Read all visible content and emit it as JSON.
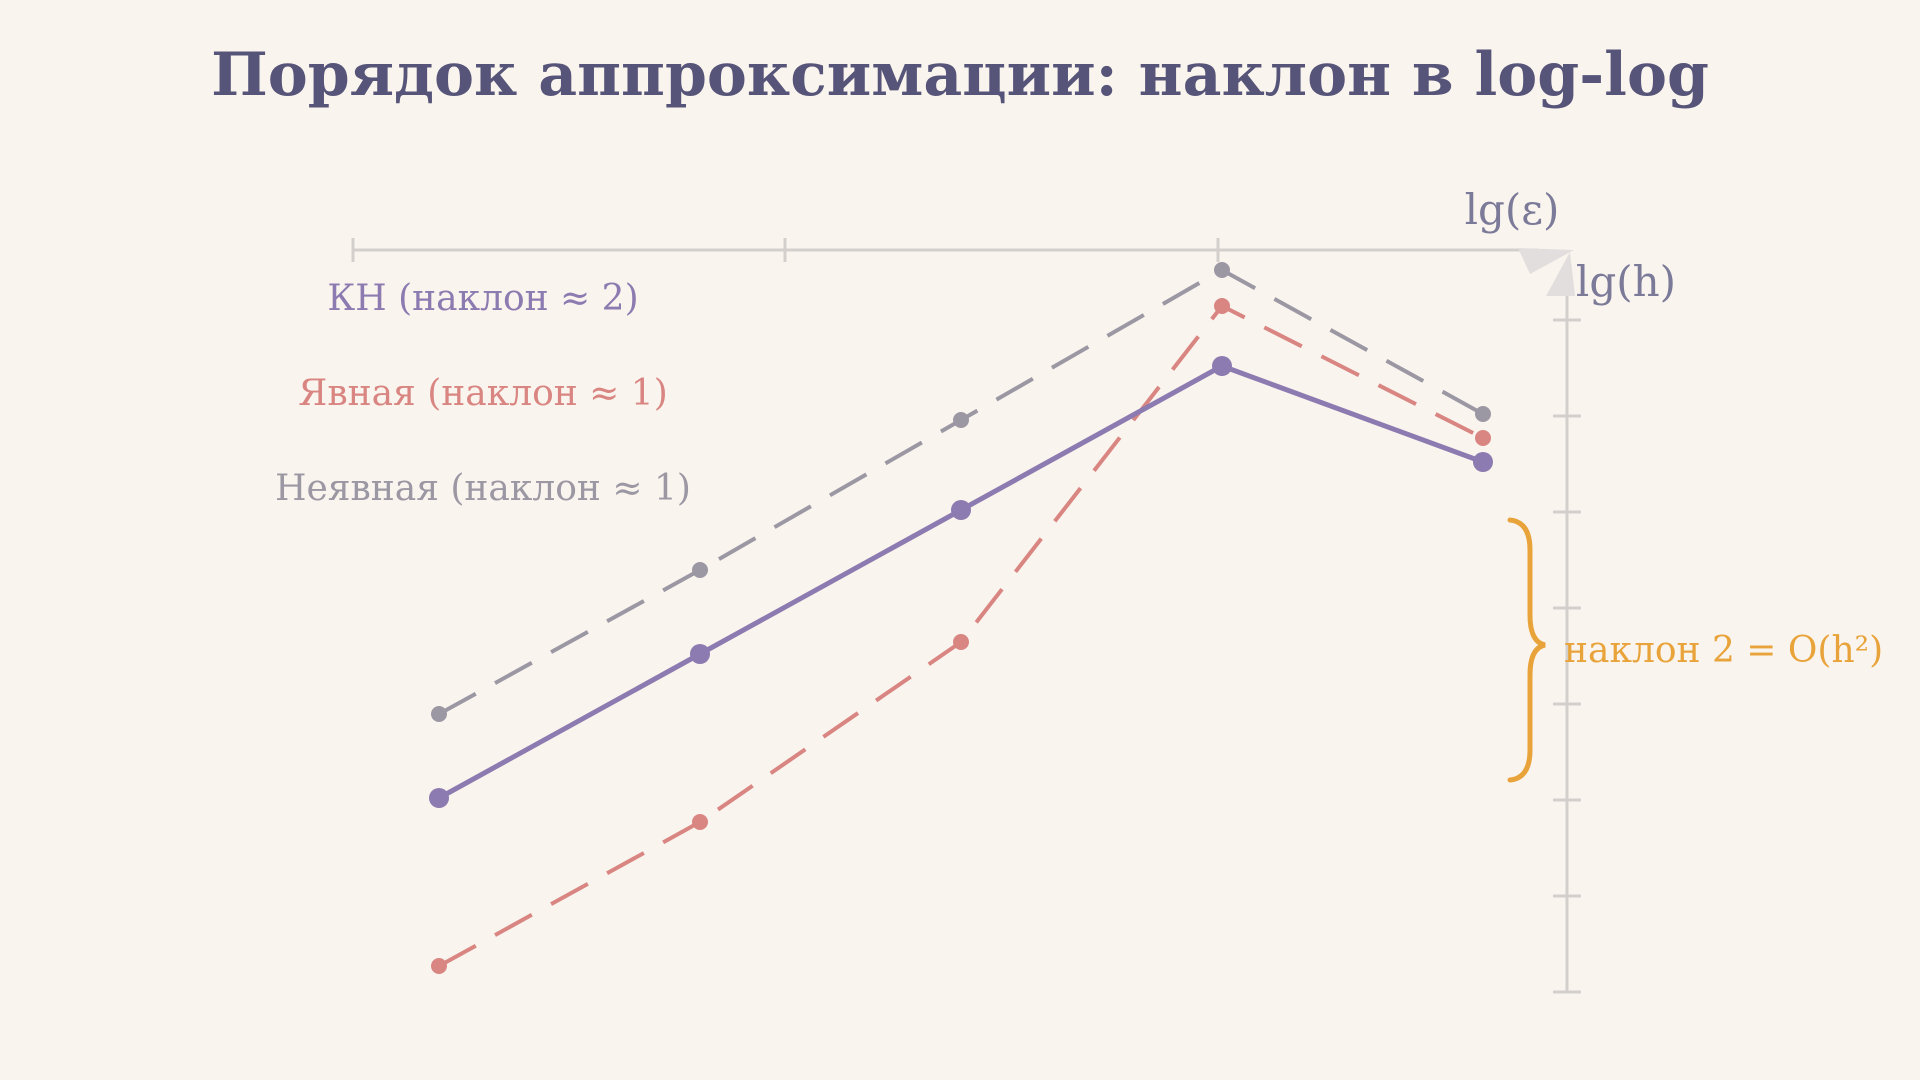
{
  "colors": {
    "background": "#faf4ee",
    "title": "#565478",
    "axis": "#d2cfcc",
    "axis_label": "#7b7a98",
    "annotation": "#e8a33a"
  },
  "chart_data": {
    "type": "line",
    "title": "Порядок аппроксимации: наклон в log-log",
    "xlabel": "lg(h)",
    "ylabel": "lg(ε)",
    "x": [
      1,
      2,
      3,
      4,
      5
    ],
    "series": [
      {
        "name": "КН (наклон ≈ 2)",
        "color": "#8c7bb0",
        "style": "solid",
        "values": [
          1.6,
          2.8,
          4.0,
          5.2,
          4.4
        ]
      },
      {
        "name": "Явная (наклон ≈ 1)",
        "color": "#d98582",
        "style": "dashed",
        "values": [
          0.2,
          1.4,
          2.9,
          5.7,
          4.6
        ]
      },
      {
        "name": "Неявная (наклон ≈ 1)",
        "color": "#9b97a3",
        "style": "dashed",
        "values": [
          2.3,
          3.5,
          4.75,
          6.0,
          4.8
        ]
      }
    ],
    "annotations": [
      {
        "text": "наклон 2 = O(h²)",
        "color": "#e8a33a"
      }
    ]
  }
}
